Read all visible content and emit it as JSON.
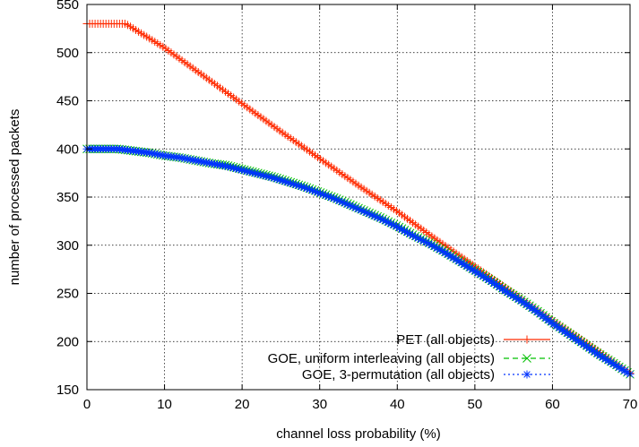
{
  "chart_data": {
    "type": "line",
    "title": "",
    "xlabel": "channel loss probability (%)",
    "ylabel": "number of processed packets",
    "xlim": [
      0,
      70
    ],
    "ylim": [
      150,
      550
    ],
    "x_ticks": [
      "0",
      "10",
      "20",
      "30",
      "40",
      "50",
      "60",
      "70"
    ],
    "y_ticks": [
      "150",
      "200",
      "250",
      "300",
      "350",
      "400",
      "450",
      "500",
      "550"
    ],
    "grid": true,
    "legend_position": "bottom-right",
    "series": [
      {
        "name": "PET (all objects)",
        "color": "#ff2a00",
        "marker": "plus",
        "dash": "solid",
        "x": [
          0,
          1,
          2,
          3,
          4,
          5,
          10,
          15,
          20,
          25,
          30,
          35,
          40,
          45,
          50,
          55,
          60,
          65,
          70
        ],
        "y": [
          530,
          530,
          530,
          530,
          530,
          530,
          505,
          476,
          447,
          418,
          390,
          362,
          335,
          306,
          278,
          250,
          222,
          195,
          167
        ]
      },
      {
        "name": "GOE, uniform interleaving (all objects)",
        "color": "#00c000",
        "marker": "cross",
        "dash": "dashed",
        "x": [
          0,
          2,
          4,
          6,
          8,
          10,
          12,
          14,
          16,
          18,
          20,
          22,
          24,
          26,
          28,
          30,
          32,
          34,
          36,
          38,
          40,
          42,
          44,
          46,
          48,
          50,
          52,
          54,
          56,
          58,
          60,
          62,
          64,
          66,
          68,
          70
        ],
        "y": [
          400,
          400,
          400,
          398,
          396,
          393,
          391,
          388,
          385,
          383,
          379,
          375,
          371,
          366,
          361,
          355,
          349,
          342,
          335,
          328,
          320,
          311,
          303,
          294,
          284,
          274,
          264,
          253,
          243,
          232,
          220,
          209,
          198,
          187,
          177,
          166
        ]
      },
      {
        "name": "GOE, 3-permutation (all objects)",
        "color": "#0033ff",
        "marker": "star",
        "dash": "dotted",
        "x": [
          0,
          2,
          4,
          6,
          8,
          10,
          12,
          14,
          16,
          18,
          20,
          22,
          24,
          26,
          28,
          30,
          32,
          34,
          36,
          38,
          40,
          42,
          44,
          46,
          48,
          50,
          52,
          54,
          56,
          58,
          60,
          62,
          64,
          66,
          68,
          70
        ],
        "y": [
          400,
          400,
          400,
          398,
          396,
          393,
          391,
          388,
          385,
          382,
          378,
          374,
          370,
          365,
          360,
          354,
          348,
          341,
          334,
          327,
          319,
          310,
          302,
          293,
          283,
          273,
          263,
          252,
          242,
          231,
          219,
          208,
          197,
          186,
          176,
          166
        ]
      }
    ]
  }
}
